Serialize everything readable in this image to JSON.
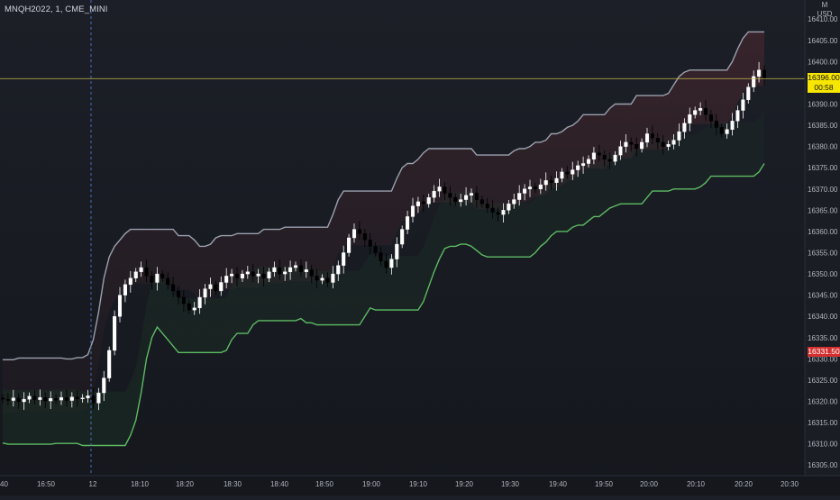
{
  "symbol": "MNQH2022, 1, CME_MINI",
  "currency": "USD",
  "currency_top": "M",
  "price_axis": {
    "ticks": [
      "16410.00",
      "16405.00",
      "16400.00",
      "16395.00",
      "16390.00",
      "16385.00",
      "16380.00",
      "16375.00",
      "16370.00",
      "16365.00",
      "16360.00",
      "16355.00",
      "16350.00",
      "16345.00",
      "16340.00",
      "16335.00",
      "16330.00",
      "16325.00",
      "16320.00",
      "16315.00",
      "16310.00",
      "16305.00"
    ],
    "tick_values": [
      16410,
      16405,
      16400,
      16395,
      16390,
      16385,
      16380,
      16375,
      16370,
      16365,
      16360,
      16355,
      16350,
      16345,
      16340,
      16335,
      16330,
      16325,
      16320,
      16315,
      16310,
      16305
    ],
    "current_price": "16396.00",
    "countdown": "00:58",
    "marker_price": "16331.50",
    "current_color": "#f7e600",
    "marker_color": "#d32f2f"
  },
  "time_axis": {
    "labels": [
      "40",
      "16:50",
      "12",
      "18:10",
      "18:20",
      "18:30",
      "18:40",
      "18:50",
      "19:00",
      "19:10",
      "19:20",
      "19:30",
      "19:40",
      "19:50",
      "20:00",
      "20:10",
      "20:20",
      "20:30"
    ]
  },
  "colors": {
    "upper_band": "#9aa0ad",
    "upper_band_falling": "#e0453f",
    "lower_band": "#5dbb63",
    "lower_band_flat": "#9aa0ad",
    "candle_up": "#ffffff",
    "candle_down": "#000000",
    "price_line": "#c8b84a"
  },
  "chart_data": {
    "type": "candlestick",
    "ylim": [
      16302.5,
      16414.5
    ],
    "current_price": 16396.0,
    "candles_close": [
      16320.5,
      16320.2,
      16320.8,
      16319.9,
      16320.5,
      16321.2,
      16320.4,
      16320.9,
      16320.1,
      16320.7,
      16320.3,
      16320.9,
      16320.2,
      16321.0,
      16320.6,
      16320.8,
      16321.3,
      16319.6,
      16322.0,
      16325.5,
      16332.0,
      16340.0,
      16345.0,
      16347.5,
      16349.0,
      16350.5,
      16351.5,
      16349.5,
      16348.0,
      16350.0,
      16349.0,
      16347.5,
      16346.0,
      16344.5,
      16343.0,
      16341.5,
      16342.0,
      16344.5,
      16346.5,
      16347.5,
      16346.0,
      16348.0,
      16349.5,
      16350.0,
      16349.0,
      16350.0,
      16350.5,
      16349.5,
      16350.0,
      16349.0,
      16350.5,
      16351.5,
      16350.0,
      16350.5,
      16351.5,
      16352.0,
      16350.5,
      16351.0,
      16349.5,
      16348.5,
      16349.0,
      16348.0,
      16350.0,
      16352.0,
      16355.0,
      16358.5,
      16360.5,
      16359.5,
      16358.0,
      16356.5,
      16355.0,
      16353.0,
      16351.5,
      16353.5,
      16357.0,
      16360.5,
      16363.5,
      16366.0,
      16367.0,
      16366.5,
      16368.0,
      16369.5,
      16370.5,
      16369.0,
      16368.0,
      16367.0,
      16367.5,
      16368.5,
      16369.0,
      16367.5,
      16366.5,
      16365.5,
      16364.5,
      16364.0,
      16365.0,
      16366.5,
      16367.5,
      16369.0,
      16370.0,
      16370.5,
      16370.0,
      16371.0,
      16372.0,
      16371.5,
      16372.5,
      16374.0,
      16373.5,
      16374.5,
      16375.5,
      16376.0,
      16377.0,
      16378.5,
      16378.0,
      16377.0,
      16376.5,
      16378.0,
      16380.0,
      16381.0,
      16380.5,
      16379.5,
      16381.0,
      16383.0,
      16382.0,
      16381.0,
      16380.0,
      16380.5,
      16381.5,
      16383.5,
      16385.5,
      16387.5,
      16388.5,
      16389.0,
      16387.5,
      16386.0,
      16384.5,
      16383.0,
      16384.0,
      16386.0,
      16388.5,
      16391.0,
      16394.0,
      16396.5,
      16398.0,
      16396.0
    ],
    "upper_band_range": [
      16310.0,
      16404.5
    ],
    "lower_band_range": [
      16308.5,
      16385.0
    ]
  }
}
